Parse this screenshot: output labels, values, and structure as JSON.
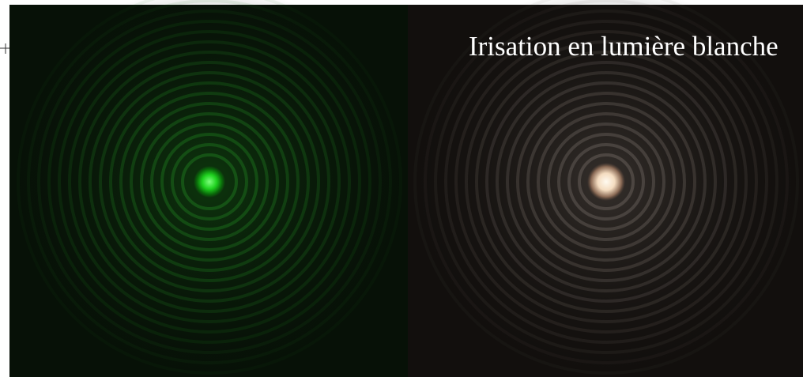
{
  "caption": "Irisation en lumière blanche"
}
